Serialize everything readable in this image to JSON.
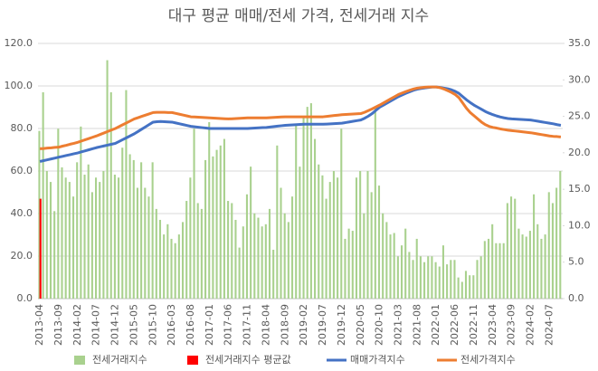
{
  "chart_data": {
    "type": "combo",
    "title": "대구 평균 매매/전세 가격, 전세거래 지수",
    "categories": [
      "2013-04",
      null,
      null,
      null,
      null,
      "2013-09",
      null,
      null,
      null,
      null,
      "2014-02",
      null,
      null,
      null,
      null,
      "2014-07",
      null,
      null,
      null,
      null,
      "2014-12",
      null,
      null,
      null,
      null,
      "2015-05",
      null,
      null,
      null,
      null,
      "2015-10",
      null,
      null,
      null,
      null,
      "2016-03",
      null,
      null,
      null,
      null,
      "2016-08",
      null,
      null,
      null,
      null,
      "2017-01",
      null,
      null,
      null,
      null,
      "2017-06",
      null,
      null,
      null,
      null,
      "2017-11",
      null,
      null,
      null,
      null,
      "2018-04",
      null,
      null,
      null,
      null,
      "2018-09",
      null,
      null,
      null,
      null,
      "2019-02",
      null,
      null,
      null,
      null,
      "2019-07",
      null,
      null,
      null,
      null,
      "2019-12",
      null,
      null,
      null,
      null,
      "2020-05",
      null,
      null,
      null,
      null,
      "2020-10",
      null,
      null,
      null,
      null,
      "2021-03",
      null,
      null,
      null,
      null,
      "2021-08",
      null,
      null,
      null,
      null,
      "2022-01",
      null,
      null,
      null,
      null,
      "2022-06",
      null,
      null,
      null,
      null,
      "2022-11",
      null,
      null,
      null,
      null,
      "2023-04",
      null,
      null,
      null,
      null,
      "2023-09",
      null,
      null,
      null,
      null,
      "2024-02",
      null,
      null,
      null,
      null,
      "2024-07",
      null,
      null,
      null
    ],
    "ylim": [
      0,
      120
    ],
    "yticks": [
      {
        "value": 0,
        "label": "0.0"
      },
      {
        "value": 20,
        "label": "20.0"
      },
      {
        "value": 40,
        "label": "40.0"
      },
      {
        "value": 60,
        "label": "60.0"
      },
      {
        "value": 80,
        "label": "80.0"
      },
      {
        "value": 100,
        "label": "100.0"
      },
      {
        "value": 120,
        "label": "120.0"
      }
    ],
    "y2lim": [
      0,
      35
    ],
    "y2ticks": [
      {
        "value": 0,
        "label": "0.0"
      },
      {
        "value": 5,
        "label": "5.0"
      },
      {
        "value": 10,
        "label": "10.0"
      },
      {
        "value": 15,
        "label": "15.0"
      },
      {
        "value": 20,
        "label": "20.0"
      },
      {
        "value": 25,
        "label": "25.0"
      },
      {
        "value": 30,
        "label": "30.0"
      },
      {
        "value": 35,
        "label": "35.0"
      }
    ],
    "grid": true,
    "legend": "bottom",
    "series": [
      {
        "name": "전세거래지수",
        "type": "bar",
        "axis": "y2",
        "color": "#a9d18e",
        "values": [
          23,
          28.3,
          17.5,
          16,
          12,
          23.3,
          18,
          16.6,
          16,
          14,
          18.7,
          23.6,
          17,
          18.4,
          14.6,
          16.6,
          16,
          17.5,
          32.7,
          28.3,
          17,
          16.6,
          20.7,
          28.6,
          19.8,
          19,
          15.2,
          18.7,
          15.2,
          14,
          18.7,
          12.3,
          10.8,
          8.8,
          10.2,
          8.2,
          7.6,
          8.8,
          10.5,
          13.4,
          16.6,
          23.3,
          13.1,
          12.3,
          19,
          24.2,
          19.5,
          20.4,
          21,
          21.9,
          13.4,
          13.1,
          10.8,
          7,
          9.9,
          14.3,
          18.1,
          11.7,
          11.1,
          9.9,
          10.2,
          12.3,
          6.7,
          21,
          15.2,
          11.7,
          10.5,
          14,
          23.9,
          18.1,
          24.8,
          26.3,
          26.8,
          21.9,
          18.4,
          16.9,
          13.7,
          16,
          17.5,
          16.6,
          23.3,
          8.2,
          9.6,
          9.3,
          16.6,
          17.5,
          11.7,
          17.5,
          14.6,
          26.3,
          15.5,
          11.7,
          10.5,
          8.8,
          9,
          5.8,
          7.3,
          9.6,
          6.4,
          5.3,
          8.2,
          5.8,
          5,
          5.8,
          5.8,
          5,
          4.4,
          7.3,
          4.7,
          5.3,
          5.3,
          2.9,
          2.3,
          3.8,
          3.2,
          3.2,
          5.3,
          5.8,
          7.9,
          8.2,
          10.2,
          7.6,
          7.6,
          7.6,
          13.1,
          14,
          13.7,
          9.6,
          8.8,
          8.5,
          9.3,
          14.3,
          10.2,
          8.2,
          8.8,
          14.6,
          13.1,
          15.2,
          17.5
        ]
      },
      {
        "name": "전세거래지수 평균값",
        "type": "bar",
        "axis": "y2",
        "color": "#ff0000",
        "values": [
          13.7,
          null,
          null,
          null,
          null,
          null,
          null,
          null,
          null,
          null,
          null,
          null,
          null,
          null,
          null,
          null,
          null,
          null,
          null,
          null,
          null,
          null,
          null,
          null,
          null,
          null,
          null,
          null,
          null,
          null,
          null,
          null,
          null,
          null,
          null,
          null,
          null,
          null,
          null,
          null,
          null,
          null,
          null,
          null,
          null,
          null,
          null,
          null,
          null,
          null,
          null,
          null,
          null,
          null,
          null,
          null,
          null,
          null,
          null,
          null,
          null,
          null,
          null,
          null,
          null,
          null,
          null,
          null,
          null,
          null,
          null,
          null,
          null,
          null,
          null,
          null,
          null,
          null,
          null,
          null,
          null,
          null,
          null,
          null,
          null,
          null,
          null,
          null,
          null,
          null,
          null,
          null,
          null,
          null,
          null,
          null,
          null,
          null,
          null,
          null,
          null,
          null,
          null,
          null,
          null,
          null,
          null,
          null,
          null,
          null,
          null,
          null,
          null,
          null,
          null,
          null,
          null,
          null,
          null,
          null,
          null,
          null,
          null,
          null,
          null,
          null,
          null,
          null,
          null,
          null,
          null,
          null,
          null,
          null,
          null,
          null,
          null,
          null,
          null
        ]
      },
      {
        "name": "매매가격지수",
        "type": "line",
        "color": "#4472c4",
        "values": [
          64.5,
          64.9,
          65.3,
          65.7,
          66.1,
          66.5,
          66.9,
          67.3,
          67.7,
          68.1,
          68.5,
          69,
          69.5,
          70,
          70.5,
          71,
          71.4,
          71.8,
          72.2,
          72.6,
          73,
          73.9,
          74.8,
          75.7,
          76.6,
          77.5,
          78.6,
          79.7,
          80.8,
          81.9,
          83,
          83.2,
          83.3,
          83.2,
          83.1,
          83,
          82.6,
          82.2,
          81.8,
          81.4,
          81,
          80.8,
          80.6,
          80.4,
          80.2,
          80,
          80,
          80,
          80,
          80,
          80,
          80,
          80,
          80,
          80,
          80,
          80.1,
          80.2,
          80.3,
          80.4,
          80.5,
          80.7,
          80.9,
          81.1,
          81.3,
          81.5,
          81.6,
          81.7,
          81.8,
          81.9,
          82,
          82,
          82,
          82,
          82,
          82,
          82.1,
          82.2,
          82.3,
          82.4,
          82.5,
          82.8,
          83.1,
          83.4,
          83.7,
          84,
          84.8,
          85.8,
          87,
          88.5,
          90,
          91,
          92,
          93,
          94,
          95,
          95.8,
          96.6,
          97.3,
          98,
          98.5,
          98.8,
          99.1,
          99.3,
          99.5,
          99.5,
          99.3,
          99,
          98.7,
          98.2,
          97.5,
          96.5,
          95,
          93.5,
          92.2,
          91,
          90,
          89,
          88,
          87.2,
          86.5,
          85.9,
          85.4,
          85,
          84.7,
          84.5,
          84.4,
          84.3,
          84.2,
          84.1,
          84,
          83.7,
          83.4,
          83.1,
          82.8,
          82.5,
          82.2,
          81.8,
          81.5
        ]
      },
      {
        "name": "전세가격지수",
        "type": "line",
        "color": "#ed7d31",
        "values": [
          70.5,
          70.6,
          70.8,
          70.9,
          71.1,
          71.2,
          71.7,
          72.1,
          72.6,
          73,
          73.5,
          74.1,
          74.7,
          75.3,
          75.9,
          76.5,
          77.2,
          77.9,
          78.6,
          79.3,
          80,
          80.9,
          81.8,
          82.7,
          83.6,
          84.5,
          85.1,
          85.7,
          86.3,
          86.9,
          87.5,
          87.6,
          87.6,
          87.6,
          87.5,
          87.5,
          87.1,
          86.7,
          86.3,
          85.9,
          85.5,
          85.4,
          85.3,
          85.2,
          85.1,
          85,
          84.9,
          84.8,
          84.7,
          84.6,
          84.5,
          84.6,
          84.7,
          84.8,
          84.9,
          85,
          85,
          85,
          85,
          85,
          85,
          85.1,
          85.2,
          85.3,
          85.4,
          85.5,
          85.5,
          85.5,
          85.5,
          85.5,
          85.5,
          85.5,
          85.5,
          85.5,
          85.5,
          85.5,
          85.7,
          85.9,
          86.1,
          86.3,
          86.5,
          86.6,
          86.7,
          86.8,
          86.9,
          87,
          87.6,
          88.4,
          89.2,
          90.1,
          91,
          92,
          93,
          94,
          95,
          96,
          96.7,
          97.4,
          98,
          98.6,
          99,
          99.2,
          99.4,
          99.5,
          99.5,
          99.5,
          99.2,
          98.6,
          97.8,
          97,
          96,
          94.5,
          92,
          89.5,
          87.5,
          86,
          84.5,
          83,
          81.8,
          81,
          80.5,
          80.2,
          79.8,
          79.5,
          79.2,
          79,
          78.8,
          78.6,
          78.4,
          78.2,
          78,
          77.7,
          77.4,
          77.1,
          76.8,
          76.5,
          76.3,
          76.2,
          76
        ]
      }
    ]
  }
}
